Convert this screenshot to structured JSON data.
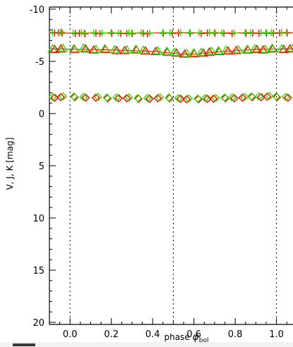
{
  "chart_data": {
    "type": "scatter",
    "xlabel_prefix": "phase ",
    "xlabel_symbol": "φ",
    "xlabel_sub": "bol",
    "ylabel": "V, J, K  [mag]",
    "xlim": [
      -0.1,
      1.08
    ],
    "ylim": [
      20.2,
      -10.2
    ],
    "y_inverted": true,
    "xticks": [
      0.0,
      0.2,
      0.4,
      0.6,
      0.8,
      1.0
    ],
    "xtick_labels": [
      "0.0",
      "0.2",
      "0.4",
      "0.6",
      "0.8",
      "1.0"
    ],
    "yticks": [
      -10,
      -5,
      0,
      5,
      10,
      15,
      20
    ],
    "ytick_labels": [
      "-10",
      "-5",
      "0",
      "5",
      "10",
      "15",
      "20"
    ],
    "vlines": [
      0.0,
      0.5,
      1.0
    ],
    "grid": false,
    "colors": {
      "observed": "#ff0000",
      "model": "#33dd00",
      "fit": "#ff0000"
    },
    "series": [
      {
        "band": "K",
        "marker": "plus",
        "points": [
          [
            -0.08,
            -7.75
          ],
          [
            -0.05,
            -7.78
          ],
          [
            -0.04,
            -7.74
          ],
          [
            0.02,
            -7.7
          ],
          [
            0.05,
            -7.72
          ],
          [
            0.07,
            -7.68
          ],
          [
            0.12,
            -7.72
          ],
          [
            0.15,
            -7.69
          ],
          [
            0.2,
            -7.72
          ],
          [
            0.24,
            -7.7
          ],
          [
            0.28,
            -7.7
          ],
          [
            0.3,
            -7.68
          ],
          [
            0.35,
            -7.72
          ],
          [
            0.38,
            -7.68
          ],
          [
            0.45,
            -7.72
          ],
          [
            0.49,
            -7.72
          ],
          [
            0.53,
            -7.74
          ],
          [
            0.58,
            -7.72
          ],
          [
            0.63,
            -7.7
          ],
          [
            0.67,
            -7.74
          ],
          [
            0.7,
            -7.72
          ],
          [
            0.74,
            -7.72
          ],
          [
            0.79,
            -7.7
          ],
          [
            0.85,
            -7.72
          ],
          [
            0.88,
            -7.74
          ],
          [
            0.92,
            -7.72
          ],
          [
            0.95,
            -7.72
          ],
          [
            0.98,
            -7.72
          ],
          [
            1.02,
            -7.74
          ],
          [
            1.05,
            -7.75
          ]
        ],
        "fit": [
          [
            -0.1,
            -7.72
          ],
          [
            0.3,
            -7.7
          ],
          [
            0.6,
            -7.74
          ],
          [
            0.9,
            -7.72
          ],
          [
            1.08,
            -7.74
          ]
        ]
      },
      {
        "band": "J",
        "marker": "triangle",
        "points": [
          [
            -0.08,
            -6.15
          ],
          [
            -0.04,
            -6.2
          ],
          [
            0.02,
            -6.15
          ],
          [
            0.07,
            -6.2
          ],
          [
            0.12,
            -6.1
          ],
          [
            0.17,
            -6.15
          ],
          [
            0.22,
            -6.05
          ],
          [
            0.27,
            -6.05
          ],
          [
            0.32,
            -6.1
          ],
          [
            0.36,
            -6.0
          ],
          [
            0.42,
            -5.95
          ],
          [
            0.47,
            -5.9
          ],
          [
            0.51,
            -5.8
          ],
          [
            0.56,
            -5.7
          ],
          [
            0.6,
            -5.75
          ],
          [
            0.64,
            -5.8
          ],
          [
            0.68,
            -5.9
          ],
          [
            0.72,
            -5.95
          ],
          [
            0.76,
            -6.0
          ],
          [
            0.81,
            -6.05
          ],
          [
            0.86,
            -6.1
          ],
          [
            0.9,
            -6.15
          ],
          [
            0.94,
            -6.1
          ],
          [
            0.98,
            -6.2
          ],
          [
            1.03,
            -6.15
          ],
          [
            1.07,
            -6.2
          ]
        ],
        "fit": [
          [
            -0.1,
            -6.2
          ],
          [
            0.2,
            -6.1
          ],
          [
            0.4,
            -5.95
          ],
          [
            0.58,
            -5.65
          ],
          [
            0.75,
            -5.95
          ],
          [
            0.9,
            -6.15
          ],
          [
            1.08,
            -6.2
          ]
        ]
      },
      {
        "band": "V",
        "marker": "diamond",
        "points": [
          [
            -0.08,
            -1.55
          ],
          [
            -0.04,
            -1.6
          ],
          [
            0.02,
            -1.6
          ],
          [
            0.07,
            -1.55
          ],
          [
            0.13,
            -1.55
          ],
          [
            0.18,
            -1.5
          ],
          [
            0.23,
            -1.5
          ],
          [
            0.28,
            -1.5
          ],
          [
            0.33,
            -1.45
          ],
          [
            0.38,
            -1.45
          ],
          [
            0.43,
            -1.5
          ],
          [
            0.48,
            -1.5
          ],
          [
            0.53,
            -1.45
          ],
          [
            0.57,
            -1.4
          ],
          [
            0.62,
            -1.4
          ],
          [
            0.66,
            -1.45
          ],
          [
            0.7,
            -1.45
          ],
          [
            0.75,
            -1.5
          ],
          [
            0.79,
            -1.5
          ],
          [
            0.84,
            -1.55
          ],
          [
            0.88,
            -1.6
          ],
          [
            0.92,
            -1.6
          ],
          [
            0.96,
            -1.65
          ],
          [
            1.0,
            -1.6
          ],
          [
            1.05,
            -1.55
          ]
        ],
        "fit": []
      }
    ]
  }
}
